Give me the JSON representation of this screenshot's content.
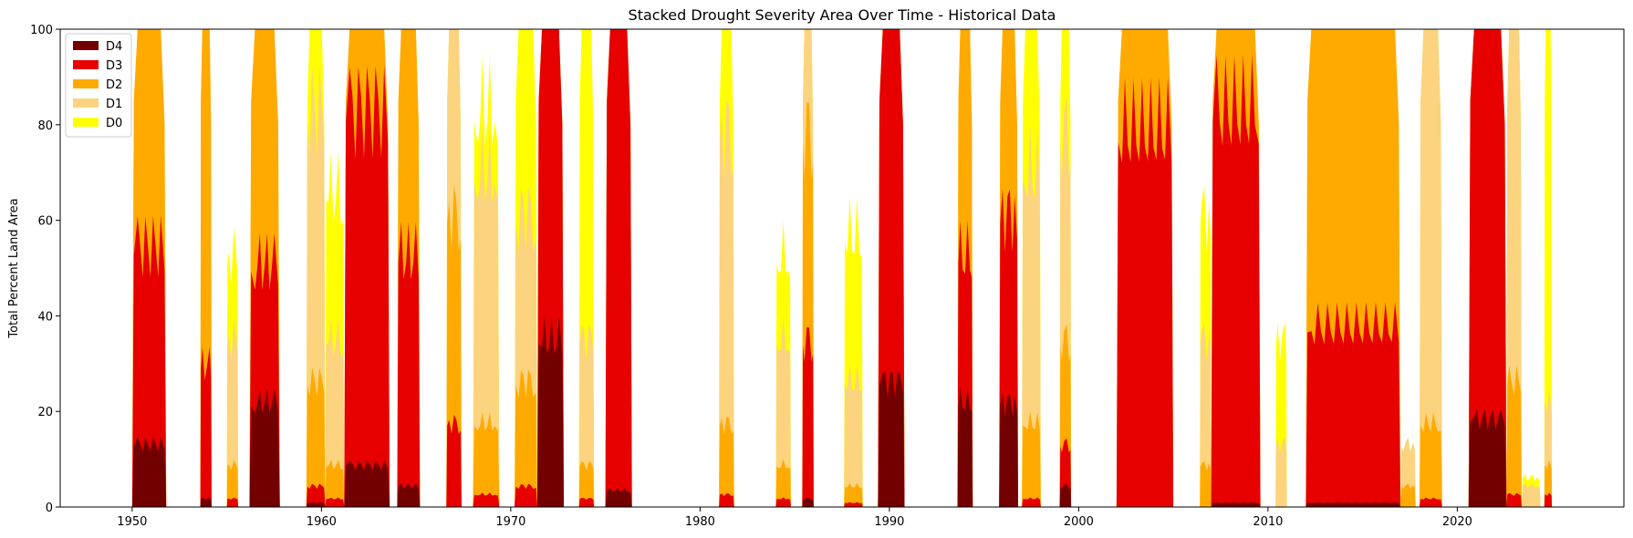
{
  "chart_data": {
    "type": "area",
    "stacked": true,
    "title": "Stacked Drought Severity Area Over Time - Historical Data",
    "xlabel": "",
    "ylabel": "Total Percent Land Area",
    "xlim": [
      1946.2,
      2028.8
    ],
    "ylim": [
      0,
      100
    ],
    "xticks": [
      1950,
      1960,
      1970,
      1980,
      1990,
      2000,
      2010,
      2020
    ],
    "yticks": [
      0,
      20,
      40,
      60,
      80,
      100
    ],
    "grid": false,
    "legend_position": "upper left",
    "series": [
      {
        "name": "D4",
        "color": "#730000"
      },
      {
        "name": "D3",
        "color": "#e60000"
      },
      {
        "name": "D2",
        "color": "#ffaa00"
      },
      {
        "name": "D1",
        "color": "#fcd37f"
      },
      {
        "name": "D0",
        "color": "#ffff00"
      }
    ],
    "events": [
      {
        "start": 1950.0,
        "end": 1951.8,
        "levels": [
          15,
          62,
          100,
          100,
          100
        ]
      },
      {
        "start": 1953.6,
        "end": 1954.2,
        "levels": [
          2,
          34,
          100,
          100,
          100
        ]
      },
      {
        "start": 1955.0,
        "end": 1955.6,
        "levels": [
          0,
          2,
          10,
          40,
          60
        ]
      },
      {
        "start": 1956.2,
        "end": 1957.8,
        "levels": [
          25,
          58,
          100,
          100,
          100
        ]
      },
      {
        "start": 1959.2,
        "end": 1960.2,
        "levels": [
          1,
          5,
          30,
          95,
          100
        ]
      },
      {
        "start": 1960.2,
        "end": 1961.2,
        "levels": [
          0,
          2,
          10,
          40,
          75
        ]
      },
      {
        "start": 1961.2,
        "end": 1963.6,
        "levels": [
          10,
          95,
          100,
          100,
          100
        ]
      },
      {
        "start": 1964.0,
        "end": 1965.2,
        "levels": [
          5,
          60,
          100,
          100,
          100
        ]
      },
      {
        "start": 1966.6,
        "end": 1967.4,
        "levels": [
          0,
          20,
          70,
          100,
          100
        ]
      },
      {
        "start": 1968.0,
        "end": 1969.4,
        "levels": [
          0,
          3,
          20,
          80,
          95
        ]
      },
      {
        "start": 1970.2,
        "end": 1971.4,
        "levels": [
          0,
          5,
          30,
          70,
          100
        ]
      },
      {
        "start": 1971.4,
        "end": 1972.8,
        "levels": [
          40,
          100,
          100,
          100,
          100
        ]
      },
      {
        "start": 1973.6,
        "end": 1974.4,
        "levels": [
          0,
          2,
          10,
          40,
          100
        ]
      },
      {
        "start": 1975.0,
        "end": 1976.4,
        "levels": [
          4,
          100,
          100,
          100,
          100
        ]
      },
      {
        "start": 1981.0,
        "end": 1981.8,
        "levels": [
          0,
          3,
          20,
          90,
          100
        ]
      },
      {
        "start": 1984.0,
        "end": 1984.8,
        "levels": [
          0,
          2,
          10,
          40,
          60
        ]
      },
      {
        "start": 1985.4,
        "end": 1986.0,
        "levels": [
          2,
          40,
          90,
          100,
          100
        ]
      },
      {
        "start": 1987.6,
        "end": 1988.6,
        "levels": [
          0,
          1,
          5,
          30,
          65
        ]
      },
      {
        "start": 1989.4,
        "end": 1990.8,
        "levels": [
          30,
          100,
          100,
          100,
          100
        ]
      },
      {
        "start": 1993.6,
        "end": 1994.4,
        "levels": [
          25,
          60,
          100,
          100,
          100
        ]
      },
      {
        "start": 1995.8,
        "end": 1996.8,
        "levels": [
          25,
          70,
          100,
          100,
          100
        ]
      },
      {
        "start": 1997.0,
        "end": 1998.0,
        "levels": [
          0,
          2,
          20,
          80,
          100
        ]
      },
      {
        "start": 1999.0,
        "end": 1999.6,
        "levels": [
          5,
          15,
          40,
          90,
          100
        ]
      },
      {
        "start": 2002.0,
        "end": 2005.0,
        "levels": [
          0,
          90,
          100,
          100,
          100
        ]
      },
      {
        "start": 2006.4,
        "end": 2007.0,
        "levels": [
          0,
          0,
          10,
          40,
          70
        ]
      },
      {
        "start": 2007.0,
        "end": 2009.6,
        "levels": [
          1,
          95,
          100,
          100,
          100
        ]
      },
      {
        "start": 2010.4,
        "end": 2011.0,
        "levels": [
          0,
          0,
          0,
          15,
          40
        ]
      },
      {
        "start": 2012.0,
        "end": 2017.0,
        "levels": [
          1,
          43,
          100,
          100,
          100
        ]
      },
      {
        "start": 2017.0,
        "end": 2017.8,
        "levels": [
          0,
          0,
          5,
          15,
          15
        ]
      },
      {
        "start": 2018.0,
        "end": 2019.2,
        "levels": [
          0,
          2,
          20,
          100,
          100
        ]
      },
      {
        "start": 2020.6,
        "end": 2022.6,
        "levels": [
          21,
          100,
          100,
          100,
          100
        ]
      },
      {
        "start": 2022.6,
        "end": 2023.4,
        "levels": [
          0,
          3,
          30,
          100,
          100
        ]
      },
      {
        "start": 2023.4,
        "end": 2024.4,
        "levels": [
          0,
          0,
          0,
          5,
          7
        ]
      },
      {
        "start": 2024.6,
        "end": 2025.0,
        "levels": [
          0,
          3,
          10,
          25,
          100
        ]
      }
    ]
  }
}
